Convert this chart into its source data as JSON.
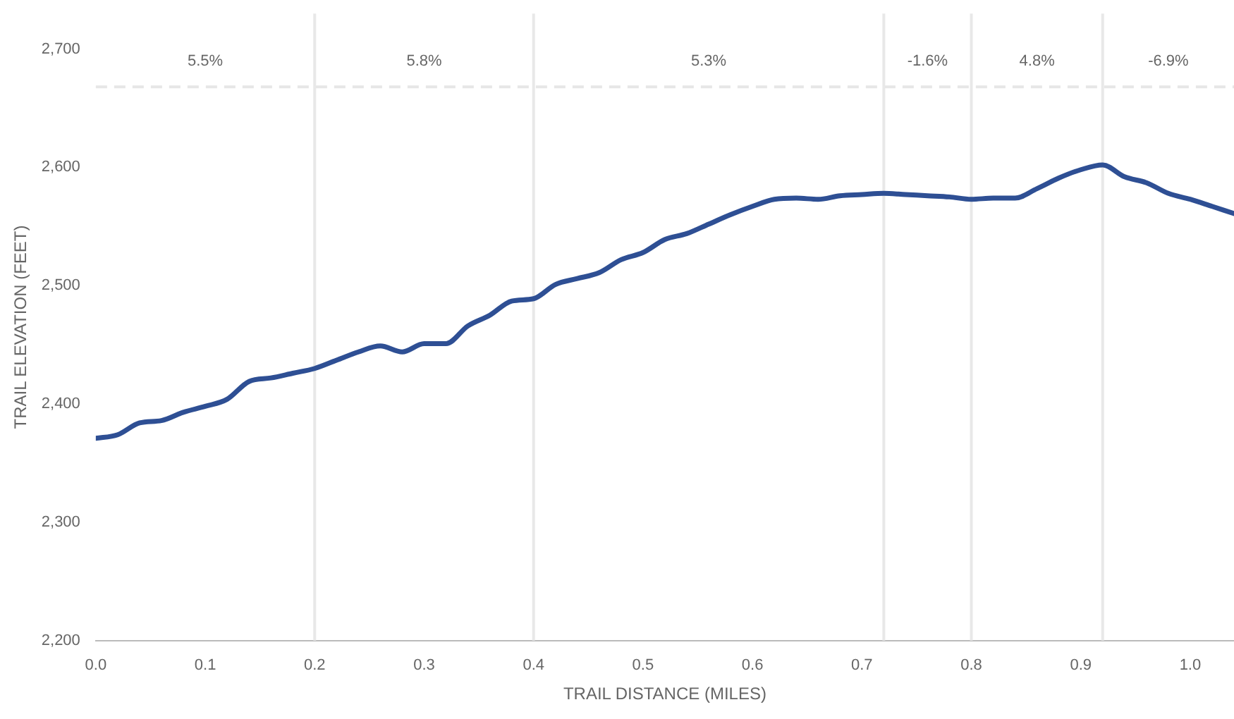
{
  "chart_data": {
    "type": "line",
    "xlabel": "TRAIL DISTANCE (MILES)",
    "ylabel": "TRAIL ELEVATION (FEET)",
    "x": [
      0,
      0.02,
      0.04,
      0.06,
      0.08,
      0.1,
      0.12,
      0.14,
      0.16,
      0.18,
      0.2,
      0.22,
      0.24,
      0.26,
      0.28,
      0.3,
      0.32,
      0.34,
      0.36,
      0.38,
      0.4,
      0.42,
      0.44,
      0.46,
      0.48,
      0.5,
      0.52,
      0.54,
      0.56,
      0.58,
      0.6,
      0.62,
      0.64,
      0.66,
      0.68,
      0.7,
      0.72,
      0.74,
      0.76,
      0.78,
      0.8,
      0.82,
      0.84,
      0.86,
      0.88,
      0.9,
      0.92,
      0.94,
      0.96,
      0.98,
      1.0,
      1.02,
      1.04
    ],
    "series": [
      {
        "color": "#2e4f94",
        "values": [
          2371,
          2374,
          2384,
          2386,
          2393,
          2398,
          2404,
          2419,
          2422,
          2426,
          2430,
          2437,
          2444,
          2449,
          2444,
          2451,
          2451,
          2466,
          2475,
          2487,
          2489,
          2501,
          2506,
          2511,
          2522,
          2528,
          2539,
          2544,
          2552,
          2560,
          2567,
          2573,
          2574,
          2573,
          2576,
          2577,
          2578,
          2577,
          2576,
          2575,
          2573,
          2574,
          2574,
          2582,
          2591,
          2598,
          2602,
          2592,
          2587,
          2578,
          2573,
          2567,
          2561
        ]
      }
    ],
    "xlim": [
      0,
      1.04
    ],
    "xticks": [
      {
        "value": 0,
        "label": "0.0"
      },
      0.1,
      0.2,
      0.3,
      0.4,
      0.5,
      0.6,
      0.7,
      0.8,
      0.9,
      {
        "value": 1,
        "label": "1.0"
      }
    ],
    "ylim": [
      2200,
      2730
    ],
    "yticks": [
      {
        "value": 2200,
        "label": "2,200"
      },
      {
        "value": 2300,
        "label": "2,300"
      },
      {
        "value": 2400,
        "label": "2,400"
      },
      {
        "value": 2500,
        "label": "2,500"
      },
      {
        "value": 2600,
        "label": "2,600"
      },
      {
        "value": 2700,
        "label": "2,700"
      }
    ],
    "grid": false,
    "legend": false,
    "marker": "none",
    "line_style": "solid",
    "annotations": [
      "5.5%",
      "5.8%",
      "5.3%",
      "-1.6%",
      "4.8%",
      "-6.9%"
    ],
    "ref_lines": [
      {
        "axis": "y",
        "value": 2668,
        "color": "#e6e6e6",
        "line_style": "dashed"
      },
      {
        "axis": "x",
        "value": 0.2,
        "color": "#e8e8e8",
        "line_style": "solid"
      },
      {
        "axis": "x",
        "value": 0.4,
        "color": "#e8e8e8",
        "line_style": "solid"
      },
      {
        "axis": "x",
        "value": 0.72,
        "color": "#e8e8e8",
        "line_style": "solid"
      },
      {
        "axis": "x",
        "value": 0.8,
        "color": "#e8e8e8",
        "line_style": "solid"
      },
      {
        "axis": "x",
        "value": 0.92,
        "color": "#e8e8e8",
        "line_style": "solid"
      }
    ]
  }
}
